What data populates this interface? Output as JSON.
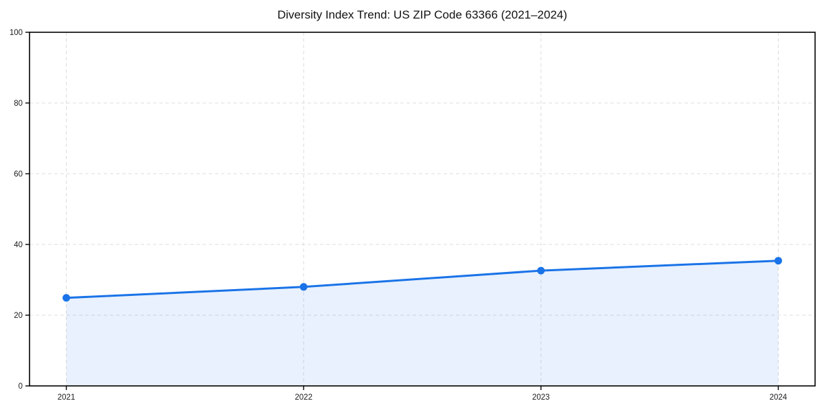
{
  "page": {
    "background": "#ffffff"
  },
  "chart_data": {
    "type": "line",
    "title": "Diversity Index Trend: US ZIP Code 63366 (2021–2024)",
    "x": [
      2021,
      2022,
      2023,
      2024
    ],
    "series": [
      {
        "name": "Diversity Index",
        "values": [
          24.9,
          28.0,
          32.6,
          35.4
        ]
      }
    ],
    "xticks": [
      "2021",
      "2022",
      "2023",
      "2024"
    ],
    "yticks": [
      0,
      20,
      40,
      60,
      80,
      100
    ],
    "xlim": [
      2020.845,
      2024.155
    ],
    "ylim": [
      0,
      100
    ],
    "xlabel": "",
    "ylabel": "",
    "legend": "none",
    "grid": {
      "style": "dashed",
      "color": "#dcdcdc"
    },
    "area_fill": true,
    "marker": "circle",
    "colors": {
      "line": "#1a73e8",
      "marker": "#1a73e8",
      "area": "#1a73e8",
      "area_opacity": 0.1,
      "axis": "#000000",
      "tick_text": "#1a1a1a"
    }
  }
}
